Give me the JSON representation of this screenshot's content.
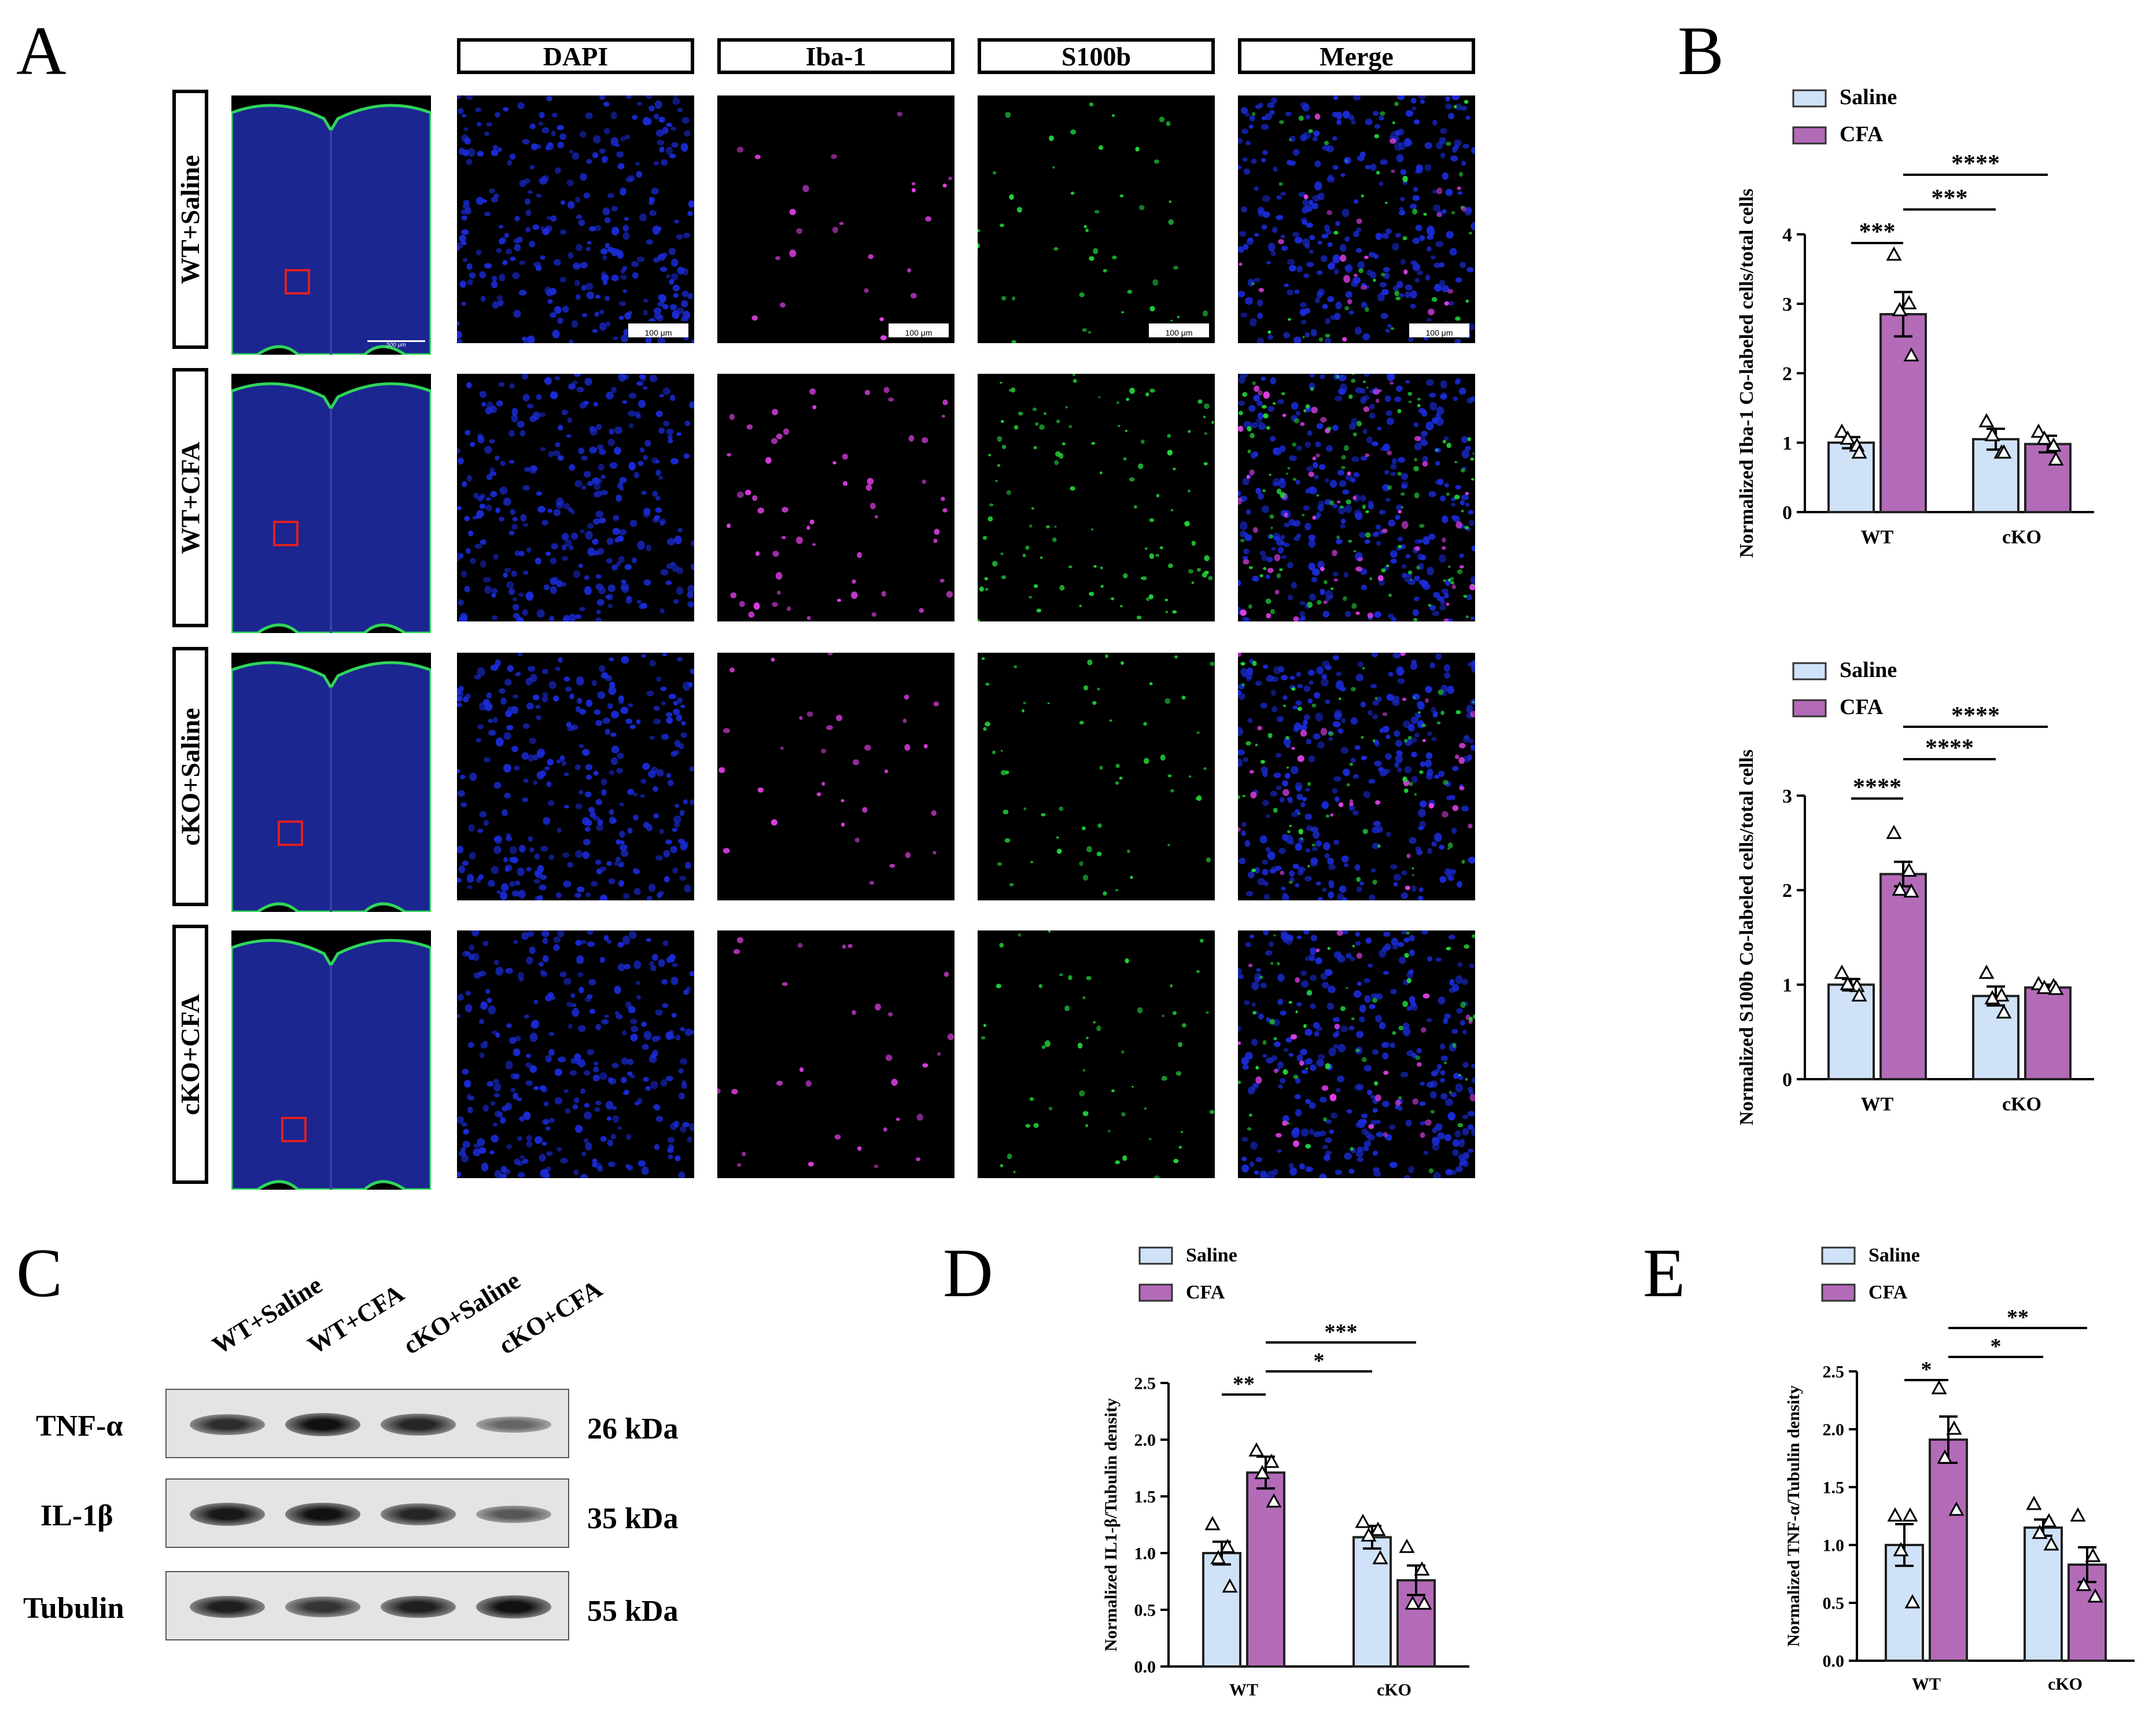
{
  "panels": {
    "A": "A",
    "B": "B",
    "C": "C",
    "D": "D",
    "E": "E"
  },
  "panelA": {
    "columns": [
      "DAPI",
      "Iba-1",
      "S100b",
      "Merge"
    ],
    "rows": [
      "WT+Saline",
      "WT+CFA",
      "cKO+Saline",
      "cKO+CFA"
    ],
    "scale_bar": "100 μm",
    "slice_scale_bar": "500 μm",
    "channel_colors": {
      "DAPI": "#1a2bd6",
      "Iba-1": "#e040e8",
      "S100b": "#22d43a"
    }
  },
  "panelB": [
    {
      "chart_data": {
        "type": "bar",
        "ylabel": "Normalized Iba-1 Co-labeled cells/total cells",
        "categories": [
          "WT",
          "cKO"
        ],
        "ylim": [
          0,
          4
        ],
        "yticks": [
          "0",
          "1",
          "2",
          "3",
          "4"
        ],
        "series": [
          {
            "name": "Saline",
            "color": "#cfe2f7",
            "values": [
              1.0,
              1.05
            ],
            "sem": [
              0.08,
              0.15
            ],
            "points": [
              [
                1.15,
                0.95,
                1.05,
                0.85
              ],
              [
                1.3,
                0.85,
                1.1,
                0.85
              ]
            ]
          },
          {
            "name": "CFA",
            "color": "#b36bb8",
            "values": [
              2.85,
              0.98
            ],
            "sem": [
              0.32,
              0.12
            ],
            "points": [
              [
                3.7,
                3.0,
                2.9,
                2.25
              ],
              [
                1.15,
                0.95,
                1.05,
                0.75
              ]
            ]
          }
        ],
        "significance": [
          {
            "label": "***",
            "from": "WT-Saline",
            "to": "WT-CFA"
          },
          {
            "label": "***",
            "from": "WT-CFA",
            "to": "cKO-Saline"
          },
          {
            "label": "****",
            "from": "WT-CFA",
            "to": "cKO-CFA"
          }
        ]
      }
    },
    {
      "chart_data": {
        "type": "bar",
        "ylabel": "Normalized S100b Co-labeled cells/total cells",
        "categories": [
          "WT",
          "cKO"
        ],
        "ylim": [
          0,
          3
        ],
        "yticks": [
          "0",
          "1",
          "2",
          "3"
        ],
        "series": [
          {
            "name": "Saline",
            "color": "#cfe2f7",
            "values": [
              1.0,
              0.88
            ],
            "sem": [
              0.06,
              0.1
            ],
            "points": [
              [
                1.12,
                0.98,
                1.0,
                0.88
              ],
              [
                1.12,
                0.88,
                0.85,
                0.7
              ]
            ]
          },
          {
            "name": "CFA",
            "color": "#b36bb8",
            "values": [
              2.17,
              0.97
            ],
            "sem": [
              0.13,
              0.03
            ],
            "points": [
              [
                2.6,
                2.2,
                2.0,
                1.98
              ],
              [
                1.0,
                0.98,
                0.96,
                0.95
              ]
            ]
          }
        ],
        "significance": [
          {
            "label": "****",
            "from": "WT-Saline",
            "to": "WT-CFA"
          },
          {
            "label": "****",
            "from": "WT-CFA",
            "to": "cKO-Saline"
          },
          {
            "label": "****",
            "from": "WT-CFA",
            "to": "cKO-CFA"
          }
        ]
      }
    }
  ],
  "panelC": {
    "lanes": [
      "WT+Saline",
      "WT+CFA",
      "cKO+Saline",
      "cKO+CFA"
    ],
    "blots": [
      {
        "protein": "TNF-α",
        "kda": "26 kDa",
        "intensity": [
          0.75,
          0.95,
          0.8,
          0.35
        ]
      },
      {
        "protein": "IL-1β",
        "kda": "35 kDa",
        "intensity": [
          0.9,
          0.95,
          0.8,
          0.45
        ]
      },
      {
        "protein": "Tubulin",
        "kda": "55 kDa",
        "intensity": [
          0.85,
          0.7,
          0.85,
          0.95
        ]
      }
    ]
  },
  "panelD": {
    "chart_data": {
      "type": "bar",
      "ylabel": "Normalized IL1-β/Tubulin density",
      "categories": [
        "WT",
        "cKO"
      ],
      "ylim": [
        0,
        2.5
      ],
      "yticks": [
        "0.0",
        "0.5",
        "1.0",
        "1.5",
        "2.0",
        "2.5"
      ],
      "series": [
        {
          "name": "Saline",
          "color": "#cfe2f7",
          "values": [
            1.0,
            1.14
          ],
          "sem": [
            0.1,
            0.1
          ],
          "points": [
            [
              1.25,
              1.05,
              0.95,
              0.7
            ],
            [
              1.27,
              1.2,
              1.15,
              0.95
            ]
          ]
        },
        {
          "name": "CFA",
          "color": "#b36bb8",
          "values": [
            1.71,
            0.76
          ],
          "sem": [
            0.14,
            0.13
          ],
          "points": [
            [
              1.9,
              1.8,
              1.7,
              1.45
            ],
            [
              1.05,
              0.85,
              0.55,
              0.55
            ]
          ]
        }
      ],
      "significance": [
        {
          "label": "**",
          "from": "WT-Saline",
          "to": "WT-CFA"
        },
        {
          "label": "*",
          "from": "WT-CFA",
          "to": "cKO-Saline"
        },
        {
          "label": "***",
          "from": "WT-CFA",
          "to": "cKO-CFA"
        }
      ]
    }
  },
  "panelE": {
    "chart_data": {
      "type": "bar",
      "ylabel": "Normalized TNF-α/Tubulin density",
      "categories": [
        "WT",
        "cKO"
      ],
      "ylim": [
        0,
        2.5
      ],
      "yticks": [
        "0.0",
        "0.5",
        "1.0",
        "1.5",
        "2.0",
        "2.5"
      ],
      "series": [
        {
          "name": "Saline",
          "color": "#cfe2f7",
          "values": [
            1.0,
            1.15
          ],
          "sem": [
            0.18,
            0.07
          ],
          "points": [
            [
              1.25,
              1.25,
              0.95,
              0.5
            ],
            [
              1.35,
              1.2,
              1.1,
              1.0
            ]
          ]
        },
        {
          "name": "CFA",
          "color": "#b36bb8",
          "values": [
            1.91,
            0.83
          ],
          "sem": [
            0.2,
            0.15
          ],
          "points": [
            [
              2.35,
              2.0,
              1.75,
              1.3
            ],
            [
              1.25,
              0.9,
              0.65,
              0.55
            ]
          ]
        }
      ],
      "significance": [
        {
          "label": "*",
          "from": "WT-Saline",
          "to": "WT-CFA"
        },
        {
          "label": "*",
          "from": "WT-CFA",
          "to": "cKO-Saline"
        },
        {
          "label": "**",
          "from": "WT-CFA",
          "to": "cKO-CFA"
        }
      ]
    }
  }
}
